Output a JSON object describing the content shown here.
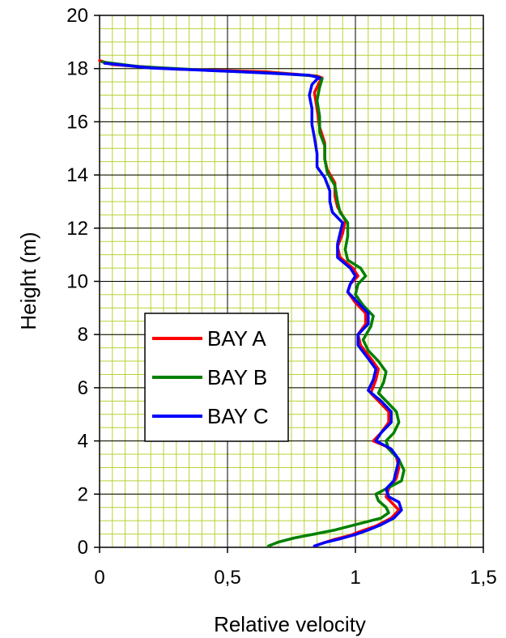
{
  "chart_data": {
    "type": "line",
    "title": "",
    "xlabel": "Relative velocity",
    "ylabel": "Height (m)",
    "xlim": [
      0,
      1.5
    ],
    "ylim": [
      0,
      20
    ],
    "x_ticks": [
      "0",
      "0,5",
      "1",
      "1,5"
    ],
    "y_ticks": [
      "0",
      "2",
      "4",
      "6",
      "8",
      "10",
      "12",
      "14",
      "16",
      "18",
      "20"
    ],
    "grid": "major black, minor yellow-green",
    "legend_position": "left-middle",
    "series": [
      {
        "name": "BAY A",
        "color": "#ff0000",
        "points": [
          [
            0.84,
            0.05
          ],
          [
            0.87,
            0.15
          ],
          [
            0.92,
            0.3
          ],
          [
            0.98,
            0.45
          ],
          [
            1.02,
            0.6
          ],
          [
            1.08,
            0.8
          ],
          [
            1.14,
            1.1
          ],
          [
            1.17,
            1.4
          ],
          [
            1.15,
            1.6
          ],
          [
            1.12,
            1.9
          ],
          [
            1.13,
            2.2
          ],
          [
            1.16,
            2.6
          ],
          [
            1.17,
            3.0
          ],
          [
            1.16,
            3.4
          ],
          [
            1.12,
            3.8
          ],
          [
            1.07,
            4.0
          ],
          [
            1.1,
            4.3
          ],
          [
            1.13,
            4.7
          ],
          [
            1.13,
            5.1
          ],
          [
            1.1,
            5.4
          ],
          [
            1.06,
            5.8
          ],
          [
            1.08,
            6.3
          ],
          [
            1.09,
            6.7
          ],
          [
            1.06,
            7.1
          ],
          [
            1.02,
            7.6
          ],
          [
            1.01,
            8.0
          ],
          [
            1.04,
            8.4
          ],
          [
            1.04,
            8.8
          ],
          [
            1.0,
            9.2
          ],
          [
            0.97,
            9.6
          ],
          [
            0.98,
            9.9
          ],
          [
            1.01,
            10.2
          ],
          [
            0.99,
            10.5
          ],
          [
            0.94,
            10.9
          ],
          [
            0.93,
            11.3
          ],
          [
            0.95,
            11.8
          ],
          [
            0.96,
            12.3
          ],
          [
            0.93,
            12.8
          ],
          [
            0.92,
            13.2
          ],
          [
            0.92,
            13.7
          ],
          [
            0.89,
            14.2
          ],
          [
            0.88,
            14.6
          ],
          [
            0.88,
            15.2
          ],
          [
            0.86,
            15.8
          ],
          [
            0.85,
            16.5
          ],
          [
            0.84,
            17.1
          ],
          [
            0.86,
            17.5
          ],
          [
            0.87,
            17.65
          ],
          [
            0.85,
            17.72
          ],
          [
            0.65,
            17.88
          ],
          [
            0.3,
            17.98
          ],
          [
            0.05,
            18.15
          ],
          [
            0.0,
            18.3
          ]
        ]
      },
      {
        "name": "BAY B",
        "color": "#008000",
        "points": [
          [
            0.66,
            0.05
          ],
          [
            0.7,
            0.2
          ],
          [
            0.76,
            0.35
          ],
          [
            0.84,
            0.5
          ],
          [
            0.92,
            0.65
          ],
          [
            0.98,
            0.8
          ],
          [
            1.04,
            0.95
          ],
          [
            1.1,
            1.1
          ],
          [
            1.13,
            1.3
          ],
          [
            1.12,
            1.5
          ],
          [
            1.09,
            1.75
          ],
          [
            1.08,
            2.0
          ],
          [
            1.13,
            2.25
          ],
          [
            1.18,
            2.5
          ],
          [
            1.19,
            2.9
          ],
          [
            1.17,
            3.3
          ],
          [
            1.13,
            3.7
          ],
          [
            1.12,
            4.0
          ],
          [
            1.15,
            4.3
          ],
          [
            1.17,
            4.7
          ],
          [
            1.16,
            5.1
          ],
          [
            1.13,
            5.4
          ],
          [
            1.09,
            5.8
          ],
          [
            1.11,
            6.2
          ],
          [
            1.12,
            6.6
          ],
          [
            1.09,
            7.0
          ],
          [
            1.05,
            7.4
          ],
          [
            1.03,
            7.8
          ],
          [
            1.06,
            8.3
          ],
          [
            1.07,
            8.7
          ],
          [
            1.03,
            9.1
          ],
          [
            1.0,
            9.5
          ],
          [
            1.01,
            9.9
          ],
          [
            1.04,
            10.2
          ],
          [
            1.02,
            10.5
          ],
          [
            0.97,
            10.8
          ],
          [
            0.96,
            11.2
          ],
          [
            0.97,
            11.7
          ],
          [
            0.97,
            12.2
          ],
          [
            0.94,
            12.6
          ],
          [
            0.93,
            13.0
          ],
          [
            0.92,
            13.6
          ],
          [
            0.89,
            14.1
          ],
          [
            0.88,
            14.6
          ],
          [
            0.88,
            15.1
          ],
          [
            0.86,
            15.6
          ],
          [
            0.86,
            16.2
          ],
          [
            0.85,
            16.8
          ],
          [
            0.86,
            17.3
          ],
          [
            0.87,
            17.62
          ],
          [
            0.84,
            17.72
          ],
          [
            0.7,
            17.82
          ],
          [
            0.45,
            17.92
          ],
          [
            0.15,
            18.08
          ],
          [
            0.01,
            18.25
          ]
        ]
      },
      {
        "name": "BAY C",
        "color": "#0000ff",
        "points": [
          [
            0.84,
            0.05
          ],
          [
            0.88,
            0.18
          ],
          [
            0.94,
            0.32
          ],
          [
            1.0,
            0.48
          ],
          [
            1.05,
            0.65
          ],
          [
            1.1,
            0.85
          ],
          [
            1.15,
            1.1
          ],
          [
            1.18,
            1.4
          ],
          [
            1.17,
            1.7
          ],
          [
            1.13,
            1.9
          ],
          [
            1.12,
            2.2
          ],
          [
            1.15,
            2.5
          ],
          [
            1.16,
            2.9
          ],
          [
            1.17,
            3.3
          ],
          [
            1.14,
            3.7
          ],
          [
            1.08,
            4.0
          ],
          [
            1.1,
            4.3
          ],
          [
            1.14,
            4.7
          ],
          [
            1.14,
            5.1
          ],
          [
            1.1,
            5.5
          ],
          [
            1.05,
            5.9
          ],
          [
            1.07,
            6.3
          ],
          [
            1.08,
            6.7
          ],
          [
            1.05,
            7.1
          ],
          [
            1.01,
            7.6
          ],
          [
            1.01,
            8.0
          ],
          [
            1.05,
            8.4
          ],
          [
            1.05,
            8.8
          ],
          [
            1.01,
            9.2
          ],
          [
            0.97,
            9.6
          ],
          [
            0.98,
            9.9
          ],
          [
            1.0,
            10.2
          ],
          [
            0.98,
            10.5
          ],
          [
            0.93,
            10.9
          ],
          [
            0.93,
            11.4
          ],
          [
            0.94,
            11.8
          ],
          [
            0.95,
            12.2
          ],
          [
            0.91,
            12.6
          ],
          [
            0.9,
            13.0
          ],
          [
            0.9,
            13.4
          ],
          [
            0.88,
            13.9
          ],
          [
            0.85,
            14.3
          ],
          [
            0.85,
            14.8
          ],
          [
            0.84,
            15.4
          ],
          [
            0.83,
            15.9
          ],
          [
            0.83,
            16.5
          ],
          [
            0.82,
            17.0
          ],
          [
            0.83,
            17.4
          ],
          [
            0.85,
            17.6
          ],
          [
            0.86,
            17.65
          ],
          [
            0.82,
            17.75
          ],
          [
            0.55,
            17.88
          ],
          [
            0.2,
            18.02
          ],
          [
            0.02,
            18.2
          ]
        ]
      }
    ]
  }
}
